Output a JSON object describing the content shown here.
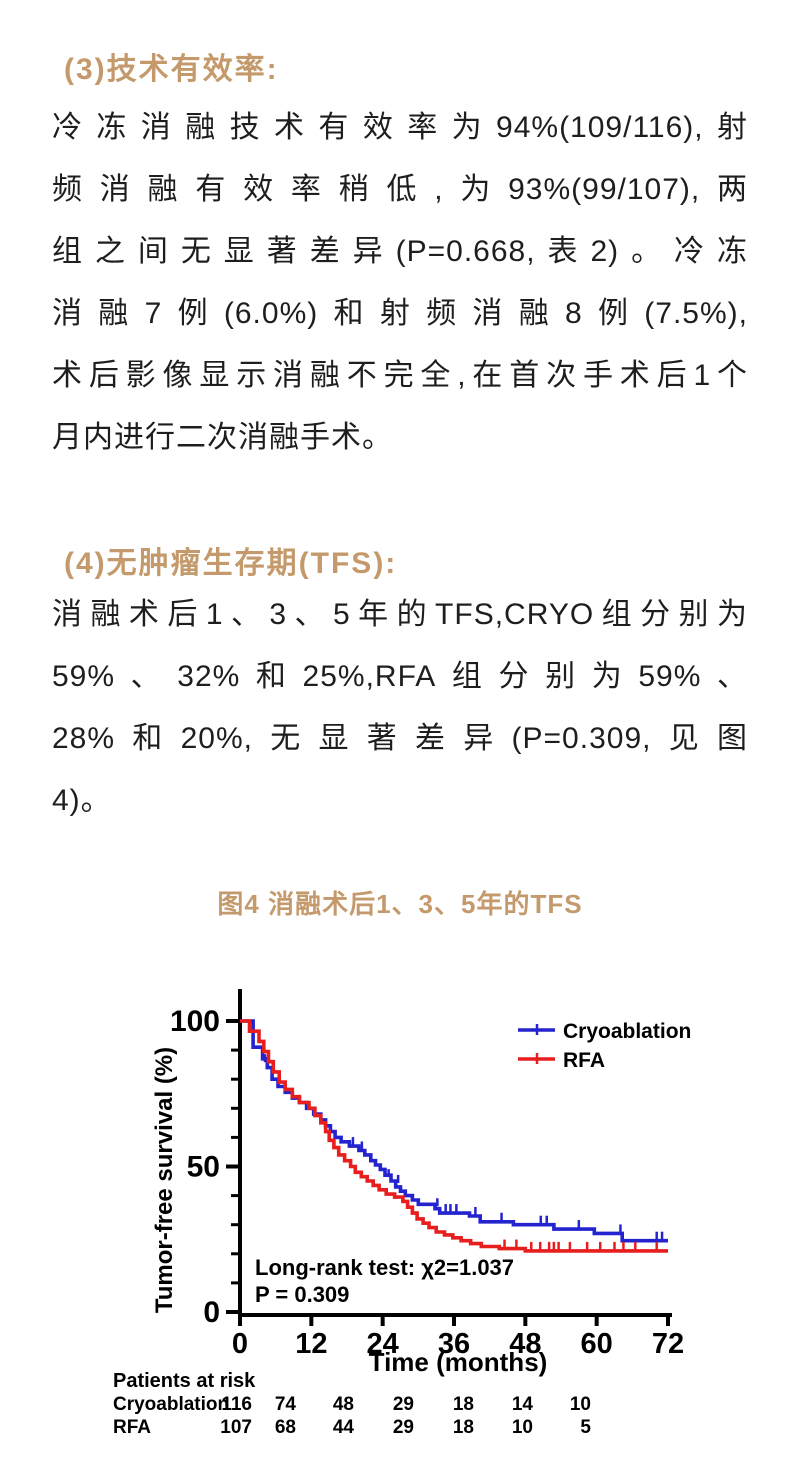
{
  "page": {
    "background_color": "#ffffff",
    "text_color": "#1e1e1e",
    "accent_color": "#c49a6c"
  },
  "sections": [
    {
      "heading": "(3)技术有效率:",
      "lines": [
        "冷冻消融技术有效率为94%(109/116),射",
        "频消融有效率稍低,为93%(99/107),两",
        "组之间无显著差异(P=0.668,表2)。冷冻",
        "消融7例(6.0%)和射频消融8例(7.5%),",
        "术后影像显示消融不完全,在首次手术后1个",
        "月内进行二次消融手术。"
      ]
    },
    {
      "heading": "(4)无肿瘤生存期(TFS):",
      "lines": [
        "消融术后1、3、5年的TFS,CRYO组分别为",
        "59%、32%和25%,RFA组分别为59%、",
        "28%和20%,无显著差异(P=0.309,见图",
        "4)。"
      ]
    }
  ],
  "figure": {
    "caption": "图4 消融术后1、3、5年的TFS"
  },
  "chart_data": {
    "type": "line",
    "subtype": "kaplan-meier-step-curve",
    "title": "",
    "xlabel": "Time (months)",
    "ylabel": "Tumor-free survival (%)",
    "xlim": [
      0,
      72
    ],
    "ylim": [
      0,
      100
    ],
    "x_ticks": [
      0,
      12,
      24,
      36,
      48,
      60,
      72
    ],
    "y_ticks": [
      0,
      50,
      100
    ],
    "y_minor_tick_interval": 10,
    "grid": "off",
    "legend_position": "top-right",
    "axis_color": "#000000",
    "annotation": {
      "line1": "Long-rank test:  χ2=1.037",
      "line2": "P = 0.309"
    },
    "series": [
      {
        "name": "Cryoablation",
        "color": "#2323cf",
        "steps": [
          [
            0,
            100
          ],
          [
            2.2,
            100
          ],
          [
            2.2,
            91
          ],
          [
            3.8,
            91
          ],
          [
            3.8,
            87
          ],
          [
            4.6,
            87
          ],
          [
            4.6,
            84
          ],
          [
            5.4,
            84
          ],
          [
            5.4,
            80
          ],
          [
            6.4,
            80
          ],
          [
            6.4,
            77.5
          ],
          [
            7.6,
            77.5
          ],
          [
            7.6,
            75.5
          ],
          [
            8.8,
            75.5
          ],
          [
            8.8,
            73.5
          ],
          [
            10,
            73.5
          ],
          [
            10,
            72
          ],
          [
            11.2,
            72
          ],
          [
            11.2,
            70
          ],
          [
            12.4,
            70
          ],
          [
            12.4,
            68
          ],
          [
            13.6,
            68
          ],
          [
            13.6,
            66
          ],
          [
            14.4,
            66
          ],
          [
            14.4,
            64
          ],
          [
            15.2,
            64
          ],
          [
            15.2,
            62
          ],
          [
            16,
            62
          ],
          [
            16,
            60
          ],
          [
            17,
            60
          ],
          [
            17,
            58.5
          ],
          [
            18.4,
            58.5
          ],
          [
            18.4,
            57
          ],
          [
            20,
            57
          ],
          [
            20,
            55.5
          ],
          [
            21,
            55.5
          ],
          [
            21,
            54
          ],
          [
            22,
            54
          ],
          [
            22,
            52
          ],
          [
            22.8,
            52
          ],
          [
            22.8,
            50.5
          ],
          [
            23.6,
            50.5
          ],
          [
            23.6,
            49
          ],
          [
            24.4,
            49
          ],
          [
            24.4,
            47
          ],
          [
            25.4,
            47
          ],
          [
            25.4,
            45
          ],
          [
            26.2,
            45
          ],
          [
            26.2,
            43
          ],
          [
            27,
            43
          ],
          [
            27,
            41.5
          ],
          [
            27.8,
            41.5
          ],
          [
            27.8,
            40
          ],
          [
            29,
            40
          ],
          [
            29,
            38.5
          ],
          [
            30,
            38.5
          ],
          [
            30,
            37
          ],
          [
            32.8,
            37
          ],
          [
            32.8,
            35.5
          ],
          [
            33.6,
            35.5
          ],
          [
            33.6,
            34
          ],
          [
            38.6,
            34
          ],
          [
            38.6,
            33
          ],
          [
            40.4,
            33
          ],
          [
            40.4,
            31
          ],
          [
            46,
            31
          ],
          [
            46,
            30
          ],
          [
            52.8,
            30
          ],
          [
            52.8,
            28.5
          ],
          [
            59.6,
            28.5
          ],
          [
            59.6,
            27
          ],
          [
            64.3,
            27
          ],
          [
            64.3,
            24.5
          ],
          [
            72,
            24.5
          ]
        ],
        "censor_marks": [
          [
            4.2,
            85.5
          ],
          [
            19,
            57
          ],
          [
            20.5,
            55.5
          ],
          [
            25,
            46
          ],
          [
            26.6,
            44
          ],
          [
            33.2,
            36
          ],
          [
            34.6,
            34
          ],
          [
            35.4,
            34
          ],
          [
            36.4,
            34
          ],
          [
            39.6,
            33
          ],
          [
            44,
            31
          ],
          [
            50.6,
            30
          ],
          [
            51.6,
            30
          ],
          [
            57,
            28.5
          ],
          [
            64,
            27
          ],
          [
            70.1,
            24.5
          ],
          [
            71,
            24.5
          ]
        ],
        "year_1_3_5_tfs_pct": [
          59,
          32,
          25
        ]
      },
      {
        "name": "RFA",
        "color": "#e81d1d",
        "steps": [
          [
            0,
            100
          ],
          [
            1.6,
            100
          ],
          [
            1.6,
            96.5
          ],
          [
            3.2,
            96.5
          ],
          [
            3.2,
            93
          ],
          [
            4,
            93
          ],
          [
            4,
            89.5
          ],
          [
            4.8,
            89.5
          ],
          [
            4.8,
            86
          ],
          [
            5.6,
            86
          ],
          [
            5.6,
            82.5
          ],
          [
            6.6,
            82.5
          ],
          [
            6.6,
            79
          ],
          [
            7.6,
            79
          ],
          [
            7.6,
            76.5
          ],
          [
            8.8,
            76.5
          ],
          [
            8.8,
            74
          ],
          [
            10,
            74
          ],
          [
            10,
            72
          ],
          [
            11.6,
            72
          ],
          [
            11.6,
            70
          ],
          [
            12.6,
            70
          ],
          [
            12.6,
            67.5
          ],
          [
            13.6,
            67.5
          ],
          [
            13.6,
            65
          ],
          [
            14.4,
            65
          ],
          [
            14.4,
            62
          ],
          [
            15,
            62
          ],
          [
            15,
            59
          ],
          [
            15.8,
            59
          ],
          [
            15.8,
            56.5
          ],
          [
            16.6,
            56.5
          ],
          [
            16.6,
            54
          ],
          [
            17.6,
            54
          ],
          [
            17.6,
            52
          ],
          [
            18.6,
            52
          ],
          [
            18.6,
            50
          ],
          [
            19.4,
            50
          ],
          [
            19.4,
            48
          ],
          [
            20.4,
            48
          ],
          [
            20.4,
            46.5
          ],
          [
            21.4,
            46.5
          ],
          [
            21.4,
            45
          ],
          [
            22.4,
            45
          ],
          [
            22.4,
            43.5
          ],
          [
            23.4,
            43.5
          ],
          [
            23.4,
            42
          ],
          [
            24.6,
            42
          ],
          [
            24.6,
            40.5
          ],
          [
            26,
            40.5
          ],
          [
            26,
            39.5
          ],
          [
            27.4,
            39.5
          ],
          [
            27.4,
            38
          ],
          [
            28.2,
            38
          ],
          [
            28.2,
            36
          ],
          [
            29,
            36
          ],
          [
            29,
            34
          ],
          [
            29.8,
            34
          ],
          [
            29.8,
            32
          ],
          [
            30.8,
            32
          ],
          [
            30.8,
            30.5
          ],
          [
            31.8,
            30.5
          ],
          [
            31.8,
            29
          ],
          [
            33,
            29
          ],
          [
            33,
            27.5
          ],
          [
            34.4,
            27.5
          ],
          [
            34.4,
            26.5
          ],
          [
            35.8,
            26.5
          ],
          [
            35.8,
            25.5
          ],
          [
            37.2,
            25.5
          ],
          [
            37.2,
            24.5
          ],
          [
            38.8,
            24.5
          ],
          [
            38.8,
            23.5
          ],
          [
            40.6,
            23.5
          ],
          [
            40.6,
            22.5
          ],
          [
            43.6,
            22.5
          ],
          [
            43.6,
            21.8
          ],
          [
            48,
            21.8
          ],
          [
            48,
            21
          ],
          [
            72,
            21
          ]
        ],
        "censor_marks": [
          [
            44.5,
            21.8
          ],
          [
            46.5,
            21.8
          ],
          [
            49,
            21
          ],
          [
            50.5,
            21
          ],
          [
            52,
            21
          ],
          [
            52.8,
            21
          ],
          [
            53.6,
            21
          ],
          [
            55.5,
            21
          ],
          [
            58.4,
            21
          ],
          [
            60.6,
            21
          ],
          [
            63,
            21
          ],
          [
            64.5,
            21
          ],
          [
            66.5,
            21
          ],
          [
            70.1,
            21
          ]
        ],
        "year_1_3_5_tfs_pct": [
          59,
          28,
          20
        ]
      }
    ],
    "at_risk_table": {
      "header": "Patients at risk",
      "time_points": [
        0,
        12,
        24,
        36,
        48,
        60,
        72
      ],
      "rows": [
        {
          "label": "Cryoablation",
          "values": [
            116,
            74,
            48,
            29,
            18,
            14,
            10
          ]
        },
        {
          "label": "RFA",
          "values": [
            107,
            68,
            44,
            29,
            18,
            10,
            5
          ]
        }
      ]
    }
  }
}
